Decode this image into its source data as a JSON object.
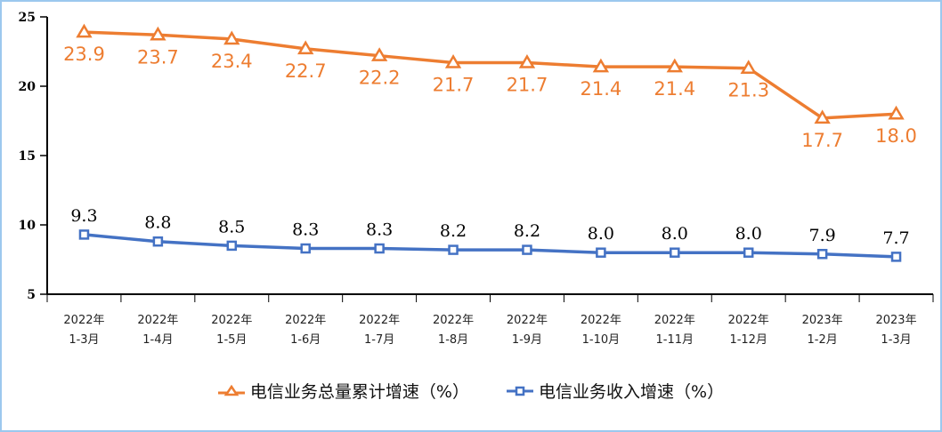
{
  "chart_data": {
    "type": "line",
    "categories": [
      [
        "2022年",
        "1-3月"
      ],
      [
        "2022年",
        "1-4月"
      ],
      [
        "2022年",
        "1-5月"
      ],
      [
        "2022年",
        "1-6月"
      ],
      [
        "2022年",
        "1-7月"
      ],
      [
        "2022年",
        "1-8月"
      ],
      [
        "2022年",
        "1-9月"
      ],
      [
        "2022年",
        "1-10月"
      ],
      [
        "2022年",
        "1-11月"
      ],
      [
        "2022年",
        "1-12月"
      ],
      [
        "2023年",
        "1-2月"
      ],
      [
        "2023年",
        "1-3月"
      ]
    ],
    "series": [
      {
        "name": "电信业务总量累计增速（%）",
        "color": "#ed7d31",
        "marker": "triangle",
        "values": [
          23.9,
          23.7,
          23.4,
          22.7,
          22.2,
          21.7,
          21.7,
          21.4,
          21.4,
          21.3,
          17.7,
          18.0
        ],
        "labels": [
          "23.9",
          "23.7",
          "23.4",
          "22.7",
          "22.2",
          "21.7",
          "21.7",
          "21.4",
          "21.4",
          "21.3",
          "17.7",
          "18.0"
        ]
      },
      {
        "name": "电信业务收入增速（%）",
        "color": "#4472c4",
        "marker": "square",
        "values": [
          9.3,
          8.8,
          8.5,
          8.3,
          8.3,
          8.2,
          8.2,
          8.0,
          8.0,
          8.0,
          7.9,
          7.7
        ],
        "labels": [
          "9.3",
          "8.8",
          "8.5",
          "8.3",
          "8.3",
          "8.2",
          "8.2",
          "8.0",
          "8.0",
          "8.0",
          "7.9",
          "7.7"
        ]
      }
    ],
    "ylim": [
      5,
      25
    ],
    "yticks": [
      "5",
      "10",
      "15",
      "20",
      "25"
    ],
    "grid": false,
    "legend": "bottom"
  }
}
